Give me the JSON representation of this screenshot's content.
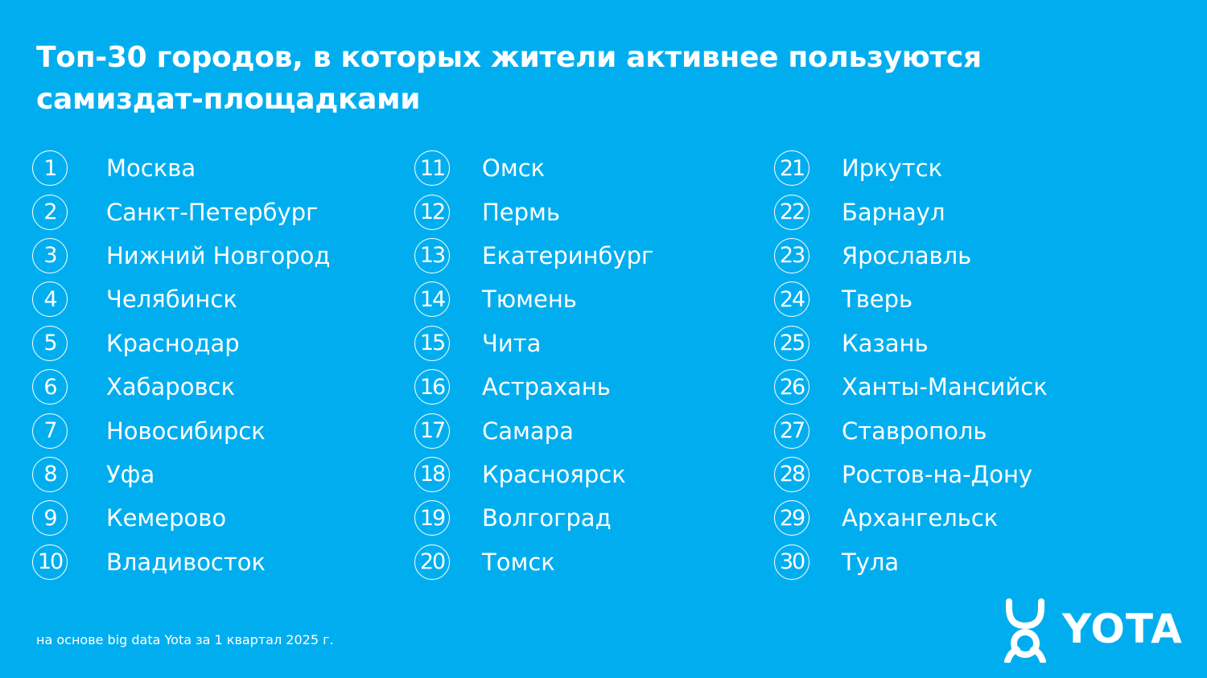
{
  "title": "Топ-30 городов, в которых жители активнее пользуются самиздат-площадками",
  "columns": [
    [
      {
        "num": "1",
        "city": "Москва"
      },
      {
        "num": "2",
        "city": "Санкт-Петербург"
      },
      {
        "num": "3",
        "city": "Нижний Новгород"
      },
      {
        "num": "4",
        "city": "Челябинск"
      },
      {
        "num": "5",
        "city": "Краснодар"
      },
      {
        "num": "6",
        "city": "Хабаровск"
      },
      {
        "num": "7",
        "city": "Новосибирск"
      },
      {
        "num": "8",
        "city": "Уфа"
      },
      {
        "num": "9",
        "city": "Кемерово"
      },
      {
        "num": "10",
        "city": "Владивосток"
      }
    ],
    [
      {
        "num": "11",
        "city": "Омск"
      },
      {
        "num": "12",
        "city": "Пермь"
      },
      {
        "num": "13",
        "city": "Екатеринбург"
      },
      {
        "num": "14",
        "city": "Тюмень"
      },
      {
        "num": "15",
        "city": "Чита"
      },
      {
        "num": "16",
        "city": "Астрахань"
      },
      {
        "num": "17",
        "city": "Самара"
      },
      {
        "num": "18",
        "city": "Красноярск"
      },
      {
        "num": "19",
        "city": "Волгоград"
      },
      {
        "num": "20",
        "city": "Томск"
      }
    ],
    [
      {
        "num": "21",
        "city": "Иркутск"
      },
      {
        "num": "22",
        "city": "Барнаул"
      },
      {
        "num": "23",
        "city": "Ярославль"
      },
      {
        "num": "24",
        "city": "Тверь"
      },
      {
        "num": "25",
        "city": "Казань"
      },
      {
        "num": "26",
        "city": "Ханты-Мансийск"
      },
      {
        "num": "27",
        "city": "Ставрополь"
      },
      {
        "num": "28",
        "city": "Ростов-на-Дону"
      },
      {
        "num": "29",
        "city": "Архангельск"
      },
      {
        "num": "30",
        "city": "Тула"
      }
    ]
  ],
  "footnote": "на основе big data Yota за 1 квартал 2025 г.",
  "logo": {
    "text": "YOTA",
    "icon": "yota-logo-icon"
  },
  "colors": {
    "background": "#00aeef",
    "text": "#ffffff"
  }
}
